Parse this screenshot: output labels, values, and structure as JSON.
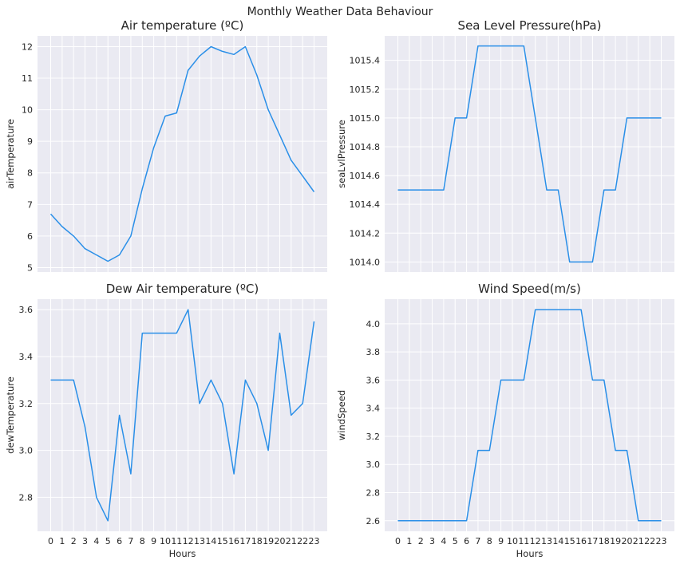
{
  "figure_title": "Monthly Weather Data Behaviour",
  "colors": {
    "line": "#2a8fe8",
    "background": "#eaeaf2",
    "grid": "#ffffff"
  },
  "chart_data": [
    {
      "type": "line",
      "title": "Air temperature (ºC)",
      "xlabel": "",
      "ylabel": "airTemperature",
      "x": [
        0,
        1,
        2,
        3,
        4,
        5,
        6,
        7,
        8,
        9,
        10,
        11,
        12,
        13,
        14,
        15,
        16,
        17,
        18,
        19,
        20,
        21,
        22,
        23
      ],
      "y": [
        6.7,
        6.3,
        6.0,
        5.6,
        5.4,
        5.2,
        5.4,
        6.0,
        7.5,
        8.8,
        9.8,
        9.9,
        11.25,
        11.7,
        12.0,
        11.85,
        11.75,
        12.0,
        11.1,
        10.0,
        9.2,
        8.4,
        7.9,
        7.4
      ],
      "xlim": [
        -1.15,
        24.15
      ],
      "ylim": [
        4.86,
        12.34
      ],
      "yticks": [
        "5",
        "6",
        "7",
        "8",
        "9",
        "10",
        "11",
        "12"
      ],
      "show_xtick_labels": false,
      "grid": true
    },
    {
      "type": "line",
      "title": "Sea Level Pressure(hPa)",
      "xlabel": "",
      "ylabel": "seaLvlPressure",
      "x": [
        0,
        1,
        2,
        3,
        4,
        5,
        6,
        7,
        8,
        9,
        10,
        11,
        12,
        13,
        14,
        15,
        16,
        17,
        18,
        19,
        20,
        21,
        22,
        23
      ],
      "y": [
        1014.5,
        1014.5,
        1014.5,
        1014.5,
        1014.5,
        1015.0,
        1015.0,
        1015.5,
        1015.5,
        1015.5,
        1015.5,
        1015.5,
        1015.0,
        1014.5,
        1014.5,
        1014.0,
        1014.0,
        1014.0,
        1014.5,
        1014.5,
        1015.0,
        1015.0,
        1015.0,
        1015.0
      ],
      "xlim": [
        -1.15,
        24.15
      ],
      "ylim": [
        1013.93,
        1015.57
      ],
      "yticks": [
        "1014.0",
        "1014.2",
        "1014.4",
        "1014.6",
        "1014.8",
        "1015.0",
        "1015.2",
        "1015.4"
      ],
      "show_xtick_labels": false,
      "grid": true
    },
    {
      "type": "line",
      "title": "Dew Air temperature (ºC)",
      "xlabel": "Hours",
      "ylabel": "dewTemperature",
      "x": [
        0,
        1,
        2,
        3,
        4,
        5,
        6,
        7,
        8,
        9,
        10,
        11,
        12,
        13,
        14,
        15,
        16,
        17,
        18,
        19,
        20,
        21,
        22,
        23
      ],
      "y": [
        3.3,
        3.3,
        3.3,
        3.1,
        2.8,
        2.7,
        3.15,
        2.9,
        3.5,
        3.5,
        3.5,
        3.5,
        3.6,
        3.2,
        3.3,
        3.2,
        2.9,
        3.3,
        3.2,
        3.0,
        3.5,
        3.15,
        3.2,
        3.55
      ],
      "xlim": [
        -1.15,
        24.15
      ],
      "ylim": [
        2.655,
        3.645
      ],
      "yticks": [
        "2.8",
        "3.0",
        "3.2",
        "3.4",
        "3.6"
      ],
      "xticks": [
        "0",
        "1",
        "2",
        "3",
        "4",
        "5",
        "6",
        "7",
        "8",
        "9",
        "10",
        "11",
        "12",
        "13",
        "14",
        "15",
        "16",
        "17",
        "18",
        "19",
        "20",
        "21",
        "22",
        "23"
      ],
      "show_xtick_labels": true,
      "grid": true
    },
    {
      "type": "line",
      "title": "Wind Speed(m/s)",
      "xlabel": "Hours",
      "ylabel": "windSpeed",
      "x": [
        0,
        1,
        2,
        3,
        4,
        5,
        6,
        7,
        8,
        9,
        10,
        11,
        12,
        13,
        14,
        15,
        16,
        17,
        18,
        19,
        20,
        21,
        22,
        23
      ],
      "y": [
        2.6,
        2.6,
        2.6,
        2.6,
        2.6,
        2.6,
        2.6,
        3.1,
        3.1,
        3.6,
        3.6,
        3.6,
        4.1,
        4.1,
        4.1,
        4.1,
        4.1,
        3.6,
        3.6,
        3.1,
        3.1,
        2.6,
        2.6,
        2.6
      ],
      "xlim": [
        -1.15,
        24.15
      ],
      "ylim": [
        2.525,
        4.175
      ],
      "yticks": [
        "2.6",
        "2.8",
        "3.0",
        "3.2",
        "3.4",
        "3.6",
        "3.8",
        "4.0"
      ],
      "xticks": [
        "0",
        "1",
        "2",
        "3",
        "4",
        "5",
        "6",
        "7",
        "8",
        "9",
        "10",
        "11",
        "12",
        "13",
        "14",
        "15",
        "16",
        "17",
        "18",
        "19",
        "20",
        "21",
        "22",
        "23"
      ],
      "show_xtick_labels": true,
      "grid": true
    }
  ]
}
